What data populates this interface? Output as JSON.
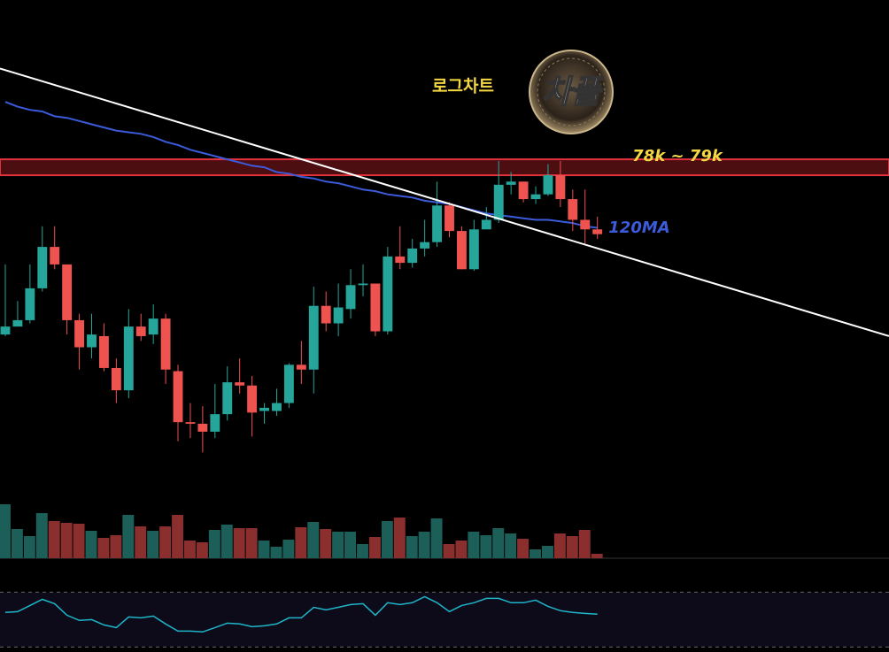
{
  "chart_data": {
    "type": "candlestick",
    "title": "로그차트",
    "logo": "차플",
    "zone_label": "78k ~ 79k",
    "zone": [
      78,
      79
    ],
    "ylim": [
      57.9,
      89.0
    ],
    "xlim": [
      -0.43,
      71.64
    ],
    "up_color": "#26a69a",
    "down_color": "#ef5350",
    "candles": {
      "open": [
        68.0,
        68.5,
        68.9,
        70.9,
        73.5,
        72.4,
        68.9,
        67.2,
        67.9,
        65.9,
        64.5,
        68.5,
        68.0,
        69.0,
        65.7,
        62.5,
        62.4,
        61.9,
        63.0,
        65.0,
        64.8,
        63.2,
        63.2,
        63.7,
        66.1,
        65.8,
        69.8,
        68.7,
        69.6,
        71.1,
        71.2,
        68.2,
        72.9,
        72.5,
        73.4,
        73.8,
        76.1,
        74.5,
        72.1,
        74.6,
        75.2,
        77.4,
        77.6,
        76.5,
        76.8,
        78.0,
        76.5,
        75.2,
        74.6
      ],
      "high": [
        72.4,
        70.1,
        72.4,
        74.8,
        74.8,
        72.4,
        69.3,
        69.3,
        68.7,
        66.5,
        69.6,
        69.3,
        69.9,
        69.3,
        66.1,
        63.7,
        63.5,
        64.9,
        66.0,
        66.5,
        65.4,
        63.7,
        64.6,
        66.2,
        67.6,
        71.0,
        70.7,
        71.2,
        72.1,
        72.4,
        71.2,
        73.5,
        74.8,
        74.0,
        75.2,
        77.6,
        76.3,
        74.8,
        75.2,
        76.0,
        78.9,
        78.2,
        77.6,
        77.3,
        78.7,
        78.9,
        77.1,
        77.1,
        75.4
      ],
      "low": [
        67.9,
        68.5,
        68.7,
        70.7,
        72.1,
        68.0,
        65.8,
        66.5,
        65.7,
        63.7,
        64.0,
        67.6,
        67.4,
        64.9,
        61.3,
        61.5,
        60.6,
        61.5,
        62.6,
        64.3,
        61.6,
        62.4,
        62.9,
        63.4,
        64.9,
        64.3,
        68.2,
        67.9,
        69.0,
        70.4,
        67.9,
        68.0,
        72.1,
        72.2,
        72.9,
        73.5,
        74.1,
        72.1,
        72.0,
        74.7,
        75.0,
        76.8,
        76.3,
        76.2,
        76.7,
        76.0,
        74.5,
        73.7,
        74.0
      ],
      "close": [
        68.5,
        68.9,
        70.9,
        73.5,
        72.4,
        68.9,
        67.2,
        68.0,
        65.9,
        64.5,
        68.5,
        67.9,
        69.0,
        65.8,
        62.5,
        62.4,
        61.9,
        63.0,
        65.0,
        64.8,
        63.1,
        63.4,
        63.7,
        66.1,
        65.8,
        69.8,
        68.7,
        69.7,
        71.1,
        71.2,
        68.2,
        72.9,
        72.5,
        73.4,
        73.8,
        76.1,
        74.5,
        72.1,
        74.6,
        75.2,
        77.4,
        77.6,
        76.5,
        76.8,
        78.0,
        76.5,
        75.2,
        74.6,
        74.3
      ]
    },
    "ma": {
      "name": "120MA",
      "color": "#3b5bdb",
      "values": [
        82.6,
        82.3,
        82.1,
        82.0,
        81.7,
        81.6,
        81.4,
        81.2,
        81.0,
        80.8,
        80.7,
        80.6,
        80.4,
        80.1,
        79.9,
        79.6,
        79.4,
        79.2,
        79.0,
        78.8,
        78.6,
        78.5,
        78.2,
        78.1,
        77.9,
        77.8,
        77.6,
        77.5,
        77.3,
        77.1,
        77.0,
        76.8,
        76.7,
        76.6,
        76.4,
        76.3,
        76.2,
        76.0,
        75.8,
        75.6,
        75.5,
        75.4,
        75.3,
        75.2,
        75.2,
        75.1,
        75.0,
        74.8,
        74.7
      ]
    },
    "trendline": {
      "color": "#ffffff",
      "x": [
        -0.43,
        71.64
      ],
      "values": [
        84.7,
        67.9
      ]
    },
    "volume": {
      "ylim": [
        0,
        100
      ],
      "up_color": "#1c5f58",
      "down_color": "#8a2e2e",
      "values": [
        61,
        33,
        25,
        51,
        42,
        40,
        39,
        31,
        23,
        26,
        49,
        36,
        31,
        36,
        49,
        20,
        18,
        32,
        38,
        34,
        34,
        20,
        13,
        21,
        35,
        41,
        33,
        30,
        30,
        16,
        24,
        42,
        46,
        25,
        30,
        45,
        16,
        20,
        30,
        26,
        34,
        28,
        22,
        10,
        14,
        28,
        25,
        32,
        5
      ]
    },
    "rsi": {
      "ylim": [
        27,
        89
      ],
      "bands": [
        70,
        30
      ],
      "color": "#1fb5c9",
      "values": [
        55.2,
        55.8,
        60.3,
        64.8,
        61.6,
        53.2,
        49.4,
        50.0,
        46.1,
        44.2,
        51.9,
        51.3,
        52.6,
        46.8,
        41.6,
        41.6,
        41.0,
        44.2,
        47.4,
        46.8,
        44.8,
        45.5,
        46.8,
        51.3,
        51.3,
        59.0,
        57.1,
        59.0,
        61.0,
        61.6,
        53.2,
        62.3,
        61.0,
        62.3,
        66.8,
        62.3,
        55.8,
        60.3,
        62.3,
        65.5,
        65.5,
        62.3,
        62.3,
        64.2,
        59.7,
        56.5,
        55.2,
        54.5,
        53.9
      ]
    }
  }
}
